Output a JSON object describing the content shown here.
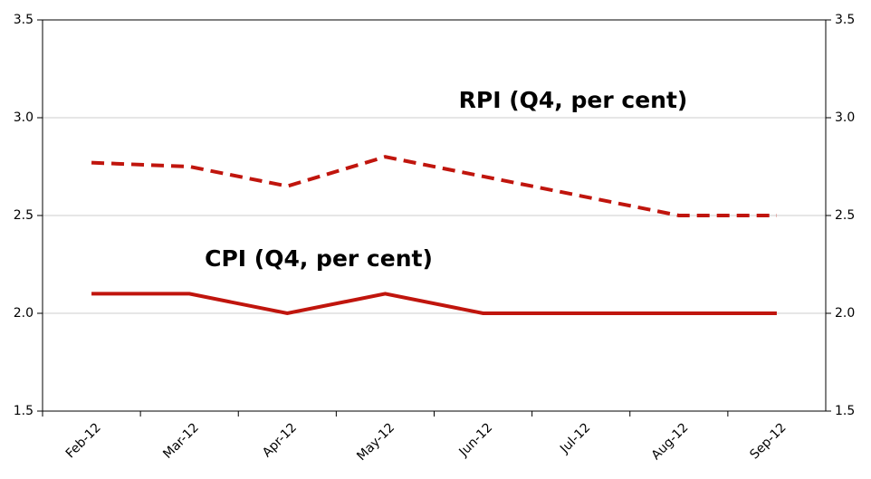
{
  "chart_data": {
    "type": "line",
    "categories": [
      "Feb-12",
      "Mar-12",
      "Apr-12",
      "May-12",
      "Jun-12",
      "Jul-12",
      "Aug-12",
      "Sep-12"
    ],
    "series": [
      {
        "name": "RPI (Q4, per cent)",
        "color": "#c0150d",
        "line_style": "dashed",
        "values": [
          2.77,
          2.75,
          2.65,
          2.8,
          2.7,
          2.6,
          2.5,
          2.5
        ]
      },
      {
        "name": "CPI (Q4, per cent)",
        "color": "#c0150d",
        "line_style": "solid",
        "values": [
          2.1,
          2.1,
          2.0,
          2.1,
          2.0,
          2.0,
          2.0,
          2.0
        ]
      }
    ],
    "ylim": [
      1.5,
      3.5
    ],
    "yticks": [
      1.5,
      {
        "value": 2,
        "label": "2.0"
      },
      2.5,
      {
        "value": 3,
        "label": "3.0"
      },
      3.5
    ],
    "y2lim": [
      1.5,
      3.5
    ],
    "y2ticks": [
      1.5,
      {
        "value": 2,
        "label": "2.0"
      },
      2.5,
      {
        "value": 3,
        "label": "3.0"
      },
      3.5
    ],
    "grid": true
  }
}
